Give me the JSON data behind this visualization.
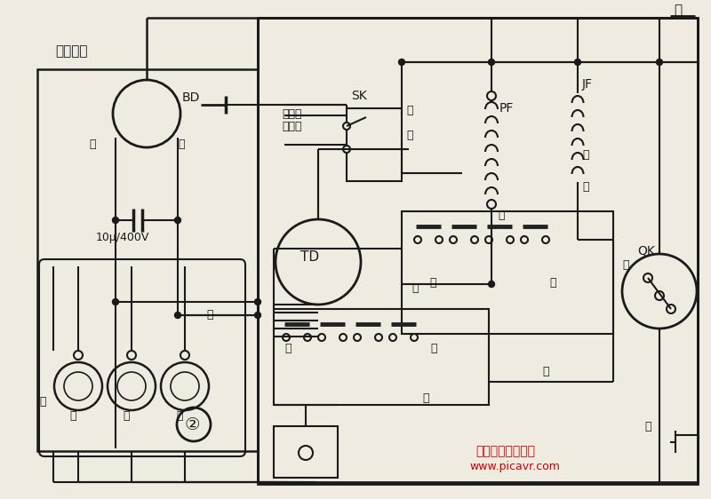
{
  "bg": "#f0ebe0",
  "lc": "#1a1a1a",
  "red_color": "#cc0000",
  "watermark1": "东星单片机学习网",
  "watermark2": "www.picavr.com",
  "title_hong": "红",
  "boluodianji": "波轮电机",
  "BD": "BD",
  "bai_left": "白",
  "huang_bd": "黄",
  "cap": "10μ/400V",
  "zi": "紫",
  "lv": "绿",
  "huang_bottom": "黄",
  "lan": "蓝",
  "huang_mid": "黄",
  "TD": "TD",
  "bupai": "不排水",
  "quancheng": "全程序",
  "SK": "SK",
  "bai_sk": "白",
  "huang_sk": "黄",
  "PF": "PF",
  "hei": "黑",
  "JF": "JF",
  "zong": "棕",
  "bai_jf": "白",
  "huang_qk": "黄",
  "QK": "QK",
  "shang_upper": "上",
  "xia_upper": "下",
  "shang_lower": "上",
  "xia_lower": "下",
  "hong_mid": "红",
  "lan_bottom": "蓝",
  "bai_bottom": "白",
  "num2": "②"
}
